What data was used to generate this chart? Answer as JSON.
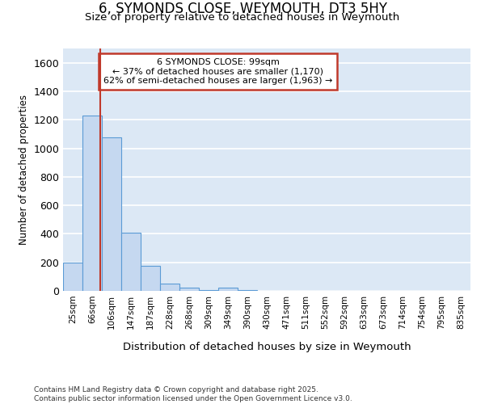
{
  "title": "6, SYMONDS CLOSE, WEYMOUTH, DT3 5HY",
  "subtitle": "Size of property relative to detached houses in Weymouth",
  "xlabel": "Distribution of detached houses by size in Weymouth",
  "ylabel": "Number of detached properties",
  "categories": [
    "25sqm",
    "66sqm",
    "106sqm",
    "147sqm",
    "187sqm",
    "228sqm",
    "268sqm",
    "309sqm",
    "349sqm",
    "390sqm",
    "430sqm",
    "471sqm",
    "511sqm",
    "552sqm",
    "592sqm",
    "633sqm",
    "673sqm",
    "714sqm",
    "754sqm",
    "795sqm",
    "835sqm"
  ],
  "values": [
    200,
    1230,
    1075,
    410,
    175,
    50,
    20,
    8,
    20,
    8,
    0,
    0,
    0,
    0,
    0,
    0,
    0,
    0,
    0,
    0,
    0
  ],
  "bar_color": "#c5d8f0",
  "bar_edge_color": "#5b9bd5",
  "vline_x": 1.43,
  "vline_color": "#c0392b",
  "annotation_text": "6 SYMONDS CLOSE: 99sqm\n← 37% of detached houses are smaller (1,170)\n62% of semi-detached houses are larger (1,963) →",
  "annotation_box_facecolor": "white",
  "annotation_box_edgecolor": "#c0392b",
  "ylim_max": 1700,
  "yticks": [
    0,
    200,
    400,
    600,
    800,
    1000,
    1200,
    1400,
    1600
  ],
  "bg_color": "#dce8f5",
  "grid_color": "white",
  "footer_line1": "Contains HM Land Registry data © Crown copyright and database right 2025.",
  "footer_line2": "Contains public sector information licensed under the Open Government Licence v3.0."
}
